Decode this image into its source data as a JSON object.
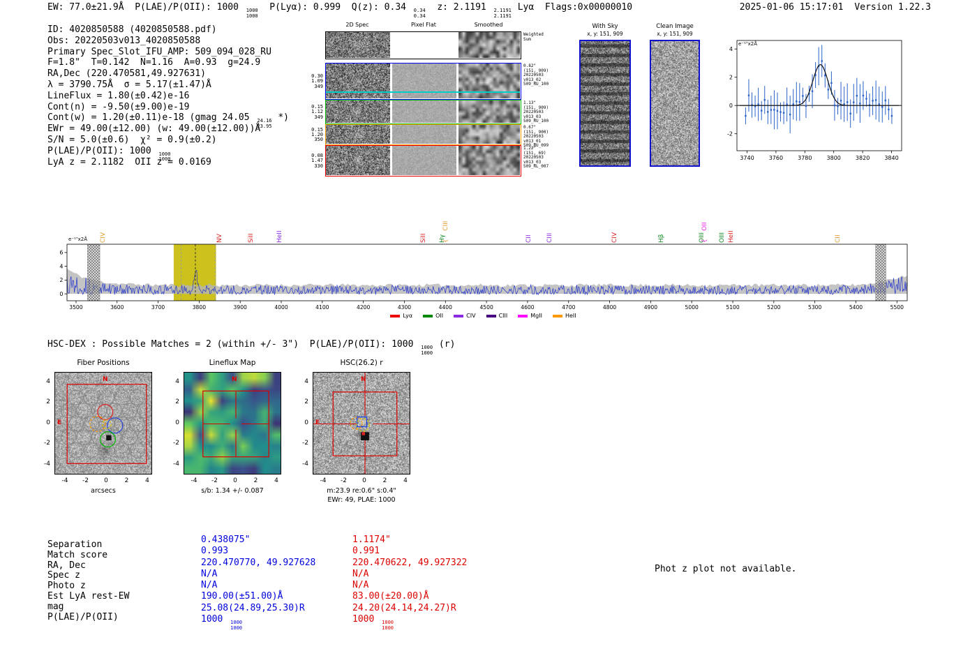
{
  "header": {
    "segments": [
      "EW: 77.0±21.9Å  ",
      {
        "pre": "P(LAE)/P(OII): 1000",
        "hi": "1000",
        "lo": "1000"
      },
      "  P(Lyα): 0.999  ",
      {
        "pre": "Q(z): 0.34",
        "hi": "0.34",
        "lo": "0.34"
      },
      "  ",
      {
        "pre": "z: 2.1191",
        "hi": "2.1191",
        "lo": "2.1191"
      },
      " Lyα  Flags:0x00000010"
    ],
    "datetime": "2025-01-06 15:17:01",
    "version": "Version 1.22.3"
  },
  "info_lines": [
    {
      "text": "ID: 4020850588 (4020850588.pdf)"
    },
    {
      "text": "Obs: 20220503v013_4020850588"
    },
    {
      "text": "Primary Spec_Slot_IFU_AMP: 509_094_028_RU"
    },
    {
      "text": "F=1.8\"  T=0.142  N=1.16  A=0.93  g=24.9"
    },
    {
      "text": "RA,Dec (220.470581,49.927631)"
    },
    {
      "text": "λ = 3790.75Å  σ = 5.17(±1.47)Å"
    },
    {
      "text": "LineFlux = 1.80(±0.42)e-16"
    },
    {
      "text": "Cont(n) = -9.50(±9.00)e-19"
    },
    {
      "pre": "Cont(w) = 1.20(±0.11)e-18 (gmag 24.05",
      "hi": "24.16",
      "lo": "23.95",
      "post": " *)"
    },
    {
      "text": "EWr = 49.00(±12.00) (w: 49.00(±12.00))Å"
    },
    {
      "text": "S/N = 5.0(±0.6)  χ² = 0.9(±0.2)"
    },
    {
      "pre": "P(LAE)/P(OII): 1000",
      "hi": "1000",
      "lo": "1000"
    },
    {
      "text": "LyA z = 2.1182  OII z = 0.0169"
    }
  ],
  "grid_2d": {
    "column_titles": [
      "2D Spec",
      "Pixel Flat",
      "Smoothed"
    ],
    "weighted_row": {
      "frame_color": "#000000",
      "right": [
        "Weighted",
        "Sum"
      ]
    },
    "rows": [
      {
        "frame_color": "#0000ee",
        "left": [
          "0.30",
          "1.09",
          "349"
        ],
        "right": [
          "0.82\"",
          "(151, 909)",
          "20220503",
          "v013_02",
          "509_RU_100"
        ]
      },
      {
        "frame_color": "#00bb00",
        "left": [
          "0.15",
          "1.12",
          "349"
        ],
        "right": [
          "1.13\"",
          "(151, 909)",
          "20220503",
          "v013_03",
          "509_RU_100"
        ]
      },
      {
        "frame_color": "#ff9900",
        "left": [
          "0.15",
          "1.20",
          "350"
        ],
        "right": [
          "0.67\"",
          "(151, 900)",
          "20220503",
          "v013_01",
          "509_RU_099"
        ]
      },
      {
        "frame_color": "#ee0000",
        "left": [
          "0.08",
          "1.47",
          "330"
        ],
        "right": [
          "1.22\"",
          "(151, 69)",
          "20220503",
          "v013_03",
          "509_RL_007"
        ]
      }
    ]
  },
  "stamps": {
    "with_sky": {
      "title": "With Sky",
      "subtitle": "x, y: 151, 909"
    },
    "clean": {
      "title": "Clean Image",
      "subtitle": "x, y: 151, 909"
    }
  },
  "hsc_line": {
    "segments": [
      "HSC-DEX : Possible Matches = 2 (within +/- 3\")  ",
      {
        "pre": "P(LAE)/P(OII): 1000",
        "hi": "1000",
        "lo": "1000"
      },
      " (r)"
    ]
  },
  "panels": [
    {
      "title": "Fiber Positions",
      "xlabel": "arcsecs",
      "xticks": [
        -4,
        -2,
        0,
        2,
        4
      ],
      "yticks": [
        4,
        2,
        0,
        -2,
        -4
      ],
      "compass": {
        "n": "N",
        "e": "E"
      },
      "markers": [
        {
          "shape": "ifu-box",
          "half": 3.85,
          "color": "#dd0000",
          "name": "ifu-footprint-box"
        },
        {
          "shape": "circle",
          "x": 0.8,
          "y": -0.15,
          "r": 0.74,
          "color": "#2244dd",
          "name": "selected-fiber-blue"
        },
        {
          "shape": "circle",
          "x": -0.15,
          "y": 1.15,
          "r": 0.74,
          "color": "#dd2222",
          "name": "selected-fiber-red"
        },
        {
          "shape": "circle",
          "x": 0.1,
          "y": -1.5,
          "r": 0.74,
          "color": "#00bb00",
          "name": "selected-fiber-green"
        },
        {
          "shape": "circle",
          "x": -0.9,
          "y": 0.0,
          "r": 0.74,
          "color": "#ff9900",
          "dashed": true,
          "name": "selected-fiber-orange"
        },
        {
          "shape": "circle",
          "x": 0.0,
          "y": -0.05,
          "r": 0.42,
          "color": "#ddcc00",
          "dashed": true,
          "name": "detection-aperture"
        },
        {
          "shape": "square-filled",
          "x": 0.2,
          "y": -1.35,
          "size": 0.5,
          "color": "#111111",
          "name": "neighbor-source-marker"
        }
      ]
    },
    {
      "title": "Lineflux Map",
      "xlabel": "s/b: 1.34 +/- 0.087",
      "xticks": [
        -4,
        -2,
        0,
        2,
        4
      ],
      "yticks": [
        4,
        2,
        0,
        -2,
        -4
      ],
      "compass": {
        "n": "N"
      },
      "markers": [
        {
          "shape": "ifu-box",
          "half": 3.2,
          "color": "#dd0000",
          "name": "ifu-footprint-box"
        },
        {
          "shape": "crosshair",
          "gap": 0.55,
          "extent": 3.2,
          "color": "#dd0000",
          "name": "target-crosshair"
        }
      ]
    },
    {
      "title": "HSC(26.2) r",
      "xlabel": "m:23.9 re:0.6\" s:0.4\"",
      "xlabel2": "EWr: 49, PLAE: 1000",
      "xticks": [
        -4,
        -2,
        0,
        2,
        4
      ],
      "yticks": [
        4,
        2,
        0,
        -2,
        -4
      ],
      "compass": {
        "n": "N",
        "e": "E"
      },
      "markers": [
        {
          "shape": "ifu-box",
          "half": 3.1,
          "color": "#dd0000",
          "name": "ifu-footprint-box"
        },
        {
          "shape": "crosshair",
          "gap": 0.8,
          "extent": 5.2,
          "color": "#dd0000",
          "name": "target-crosshair"
        },
        {
          "shape": "square",
          "x": -0.3,
          "y": 0.2,
          "size": 0.95,
          "color": "#2244dd",
          "name": "catalog-match-blue"
        },
        {
          "shape": "circle",
          "x": -0.2,
          "y": -0.1,
          "r": 0.62,
          "color": "#ddcc00",
          "dashed": true,
          "name": "aperture-yellow"
        },
        {
          "shape": "circle",
          "x": -0.85,
          "y": 0.05,
          "r": 0.58,
          "color": "#ff9900",
          "dashed": true,
          "name": "aperture-orange"
        },
        {
          "shape": "square-filled",
          "x": 0.0,
          "y": -1.2,
          "size": 0.8,
          "color": "#111111",
          "name": "catalog-match-dark"
        },
        {
          "shape": "square-filled",
          "x": -0.15,
          "y": -0.95,
          "size": 0.3,
          "color": "#dd2222",
          "name": "catalog-match-red"
        }
      ]
    }
  ],
  "match_table": {
    "row_labels": [
      "Separation",
      "Match score",
      "RA, Dec",
      "Spec z",
      "Photo z",
      "Est LyA rest-EW",
      "mag",
      "P(LAE)/P(OII)"
    ],
    "match1": {
      "color": "#0000dd",
      "values": [
        "0.438075\"",
        "0.993",
        "220.470770, 49.927628",
        "N/A",
        "N/A",
        "190.00(±51.00)Å",
        "25.08(24.89,25.30)R",
        {
          "pre": "1000",
          "hi": "1000",
          "lo": "1000"
        }
      ]
    },
    "match2": {
      "color": "#dd0000",
      "values": [
        "1.1174\"",
        "0.991",
        "220.470622, 49.927322",
        "N/A",
        "N/A",
        "83.00(±20.00)Å",
        "24.20(24.14,24.27)R",
        {
          "pre": "1000",
          "hi": "1000",
          "lo": "1000"
        }
      ]
    }
  },
  "phot_z_note": "Phot z plot not available.",
  "chart_data": [
    {
      "id": "line_fit_plot",
      "type": "scatter",
      "corner_label": "e⁻¹⁷x2Å",
      "xlim": [
        3733,
        3847
      ],
      "ylim": [
        -3.2,
        4.6
      ],
      "xticks": [
        3740,
        3760,
        3780,
        3800,
        3820,
        3840
      ],
      "yticks": [
        -2,
        0,
        2,
        4
      ],
      "grid": false,
      "gaussian_fit": {
        "center": 3790.75,
        "sigma": 5.17,
        "amplitude": 2.9,
        "baseline": 0.0
      },
      "series": [
        {
          "name": "flux-errorbars",
          "color": "#2a62c9",
          "note": "noisy flux points with errorbars scattered about 0, Gaussian emission peak at 3790.75Å"
        }
      ]
    },
    {
      "id": "full_spectrum_plot",
      "type": "line",
      "corner_label": "e⁻¹⁷x2Å",
      "xlim": [
        3478,
        5525
      ],
      "ylim": [
        -1,
        7.2
      ],
      "xticks": [
        3500,
        3600,
        3700,
        3800,
        3900,
        4000,
        4100,
        4200,
        4300,
        4400,
        4500,
        4600,
        4700,
        4800,
        4900,
        5000,
        5100,
        5200,
        5300,
        5400,
        5500
      ],
      "yticks": [
        0,
        2,
        4,
        6
      ],
      "line_color": "#2233cc",
      "noise_envelope_color": "#b5b5b5",
      "highlight_band": {
        "x0": 3738,
        "x1": 3841,
        "color": "#cdc11e"
      },
      "dashed_vlines": [
        {
          "x": 3790.75,
          "color": "#222222"
        },
        {
          "x": 3756,
          "color": "#999999"
        },
        {
          "x": 3839,
          "color": "#999999"
        }
      ],
      "hatched_bands": [
        [
          3528,
          3558
        ],
        [
          5448,
          5473
        ]
      ],
      "emission_peak": {
        "center": 3790.75,
        "amplitude": 2.7
      },
      "line_labels": [
        {
          "wavelength": 3583,
          "label": "CIV",
          "color": "#e09c2f",
          "brace": false
        },
        {
          "wavelength": 3867,
          "label": "NV",
          "color": "#dd2222",
          "brace": false
        },
        {
          "wavelength": 3944,
          "label": "SiII",
          "color": "#dd2222",
          "brace": false
        },
        {
          "wavelength": 4013,
          "label": "HeII",
          "color": "#8a2be2",
          "brace": false
        },
        {
          "wavelength": 4363,
          "label": "SiII",
          "color": "#dd2222",
          "brace": false
        },
        {
          "wavelength": 4410,
          "label": "Hγ",
          "color": "#118822",
          "brace": false
        },
        {
          "wavelength": 4418,
          "label": "CIII",
          "color": "#e09c2f",
          "brace": true
        },
        {
          "wavelength": 4620,
          "label": "CII",
          "color": "#8a2be2",
          "brace": false
        },
        {
          "wavelength": 4671,
          "label": "CIII",
          "color": "#8a2be2",
          "brace": false
        },
        {
          "wavelength": 4830,
          "label": "CIV",
          "color": "#dd2222",
          "brace": false
        },
        {
          "wavelength": 4943,
          "label": "Hβ",
          "color": "#118822",
          "brace": false
        },
        {
          "wavelength": 5043,
          "label": "OIII",
          "color": "#118822",
          "brace": false
        },
        {
          "wavelength": 5049,
          "label": "OII",
          "color": "#ee22ee",
          "brace": true
        },
        {
          "wavelength": 5092,
          "label": "OIII",
          "color": "#118822",
          "brace": false
        },
        {
          "wavelength": 5114,
          "label": "HeII",
          "color": "#dd2222",
          "brace": false
        },
        {
          "wavelength": 5373,
          "label": "CII",
          "color": "#e09c2f",
          "brace": false
        }
      ],
      "legend": [
        {
          "label": "Lyα",
          "color": "#ee0000"
        },
        {
          "label": "OII",
          "color": "#008800"
        },
        {
          "label": "CIV",
          "color": "#8a2be2"
        },
        {
          "label": "CIII",
          "color": "#4b0082"
        },
        {
          "label": "MgII",
          "color": "#ff00ff"
        },
        {
          "label": "HeII",
          "color": "#ff9900"
        }
      ]
    }
  ]
}
